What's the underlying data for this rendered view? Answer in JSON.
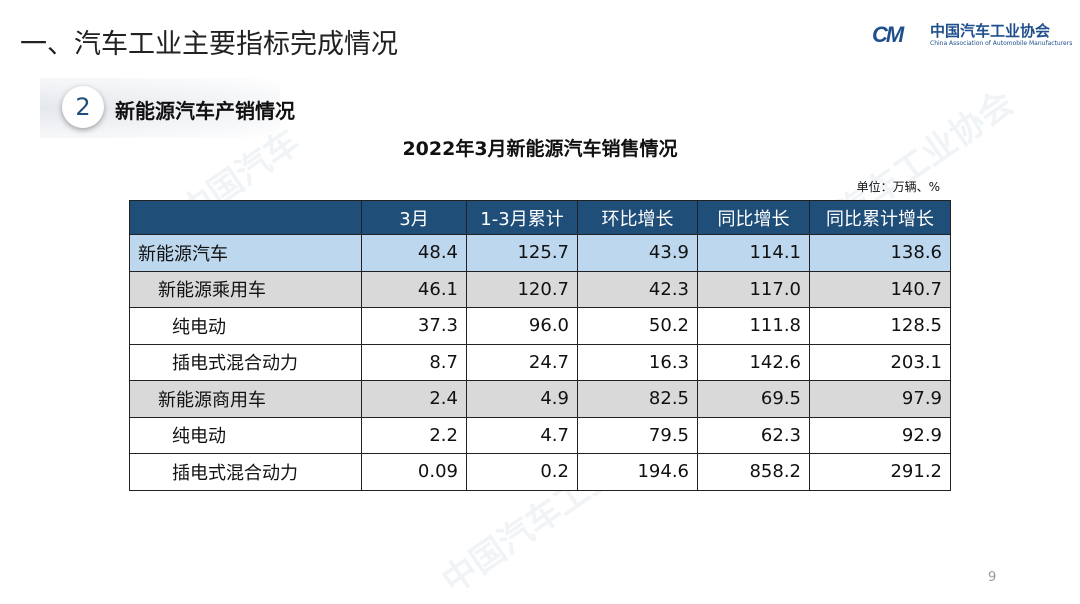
{
  "header": {
    "title": "一、汽车工业主要指标完成情况",
    "logo_cn": "中国汽车工业协会",
    "logo_en": "China Association of Automobile Manufacturers",
    "logo_mark": "CAM"
  },
  "section": {
    "number": "2",
    "title": "新能源汽车产销情况"
  },
  "table": {
    "title": "2022年3月新能源汽车销售情况",
    "unit": "单位：万辆、%",
    "columns": [
      "",
      "3月",
      "1-3月累计",
      "环比增长",
      "同比增长",
      "同比累计增长"
    ],
    "rows": [
      {
        "label": "新能源汽车",
        "level": 0,
        "values": [
          "48.4",
          "125.7",
          "43.9",
          "114.1",
          "138.6"
        ]
      },
      {
        "label": "新能源乘用车",
        "level": 1,
        "values": [
          "46.1",
          "120.7",
          "42.3",
          "117.0",
          "140.7"
        ]
      },
      {
        "label": "纯电动",
        "level": 2,
        "values": [
          "37.3",
          "96.0",
          "50.2",
          "111.8",
          "128.5"
        ]
      },
      {
        "label": "插电式混合动力",
        "level": 2,
        "values": [
          "8.7",
          "24.7",
          "16.3",
          "142.6",
          "203.1"
        ]
      },
      {
        "label": "新能源商用车",
        "level": 1,
        "values": [
          "2.4",
          "4.9",
          "82.5",
          "69.5",
          "97.9"
        ]
      },
      {
        "label": "纯电动",
        "level": 2,
        "values": [
          "2.2",
          "4.7",
          "79.5",
          "62.3",
          "92.9"
        ]
      },
      {
        "label": "插电式混合动力",
        "level": 2,
        "values": [
          "0.09",
          "0.2",
          "194.6",
          "858.2",
          "291.2"
        ]
      }
    ]
  },
  "page_number": "9",
  "colors": {
    "header": "#1f4e79",
    "total_row": "#bdd7ee",
    "subtotal_row": "#d9d9d9"
  }
}
